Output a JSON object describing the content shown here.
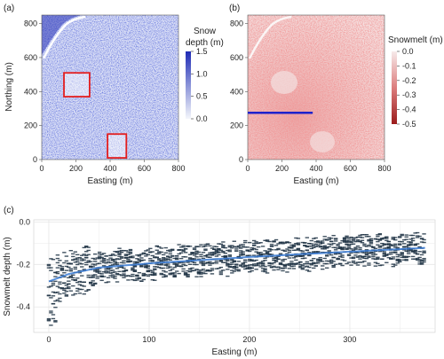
{
  "colors": {
    "snow_low": "#f4f6fb",
    "snow_high": "#1f2bb5",
    "melt_low": "#f7eaea",
    "melt_high": "#9b1b1b",
    "roi": "#e31e1e",
    "transect": "#1e22cc",
    "scatter": "#1e3244",
    "trend": "#3a7bd5",
    "grid": "#e6e6e6"
  },
  "chart_data": [
    {
      "panel": "(a)",
      "type": "heatmap",
      "xlabel": "Easting (m)",
      "ylabel": "Northing (m)",
      "xlim": [
        0,
        800
      ],
      "ylim": [
        0,
        850
      ],
      "xticks": [
        "0",
        "200",
        "400",
        "600",
        "800"
      ],
      "yticks": [
        "0",
        "200",
        "400",
        "600",
        "800"
      ],
      "colorbar": {
        "title": [
          "Snow",
          "depth (m)"
        ],
        "range": [
          0,
          1.5
        ],
        "ticks": [
          "0.0",
          "0.5",
          "1.0",
          "1.5"
        ]
      },
      "regions": [
        {
          "x": [
            130,
            280
          ],
          "y": [
            370,
            510
          ]
        },
        {
          "x": [
            385,
            495
          ],
          "y": [
            10,
            150
          ]
        }
      ]
    },
    {
      "panel": "(b)",
      "type": "heatmap",
      "xlabel": "Easting (m)",
      "ylabel": "",
      "xlim": [
        0,
        800
      ],
      "ylim": [
        0,
        850
      ],
      "xticks": [
        "0",
        "200",
        "400",
        "600",
        "800"
      ],
      "yticks": [
        "0",
        "200",
        "400",
        "600",
        "800"
      ],
      "colorbar": {
        "title": [
          "Snowmelt (m)"
        ],
        "range": [
          -0.5,
          0
        ],
        "ticks": [
          "0.0",
          "-0.1",
          "-0.2",
          "-0.3",
          "-0.4",
          "-0.5"
        ]
      },
      "transect": {
        "x": [
          0,
          380
        ],
        "y": 275
      }
    },
    {
      "panel": "(c)",
      "type": "scatter",
      "xlabel": "Easting (m)",
      "ylabel": "Snowmelt depth (m)",
      "xlim": [
        -15,
        385
      ],
      "ylim": [
        -0.52,
        0.01
      ],
      "xticks": [
        "0",
        "100",
        "200",
        "300"
      ],
      "yticks": [
        "0.0",
        "-0.2",
        "-0.4"
      ],
      "grid": true,
      "trend": {
        "x": [
          0,
          20,
          50,
          100,
          150,
          200,
          250,
          300,
          350,
          375
        ],
        "y": [
          -0.28,
          -0.245,
          -0.215,
          -0.195,
          -0.18,
          -0.165,
          -0.152,
          -0.14,
          -0.128,
          -0.122
        ]
      }
    }
  ]
}
